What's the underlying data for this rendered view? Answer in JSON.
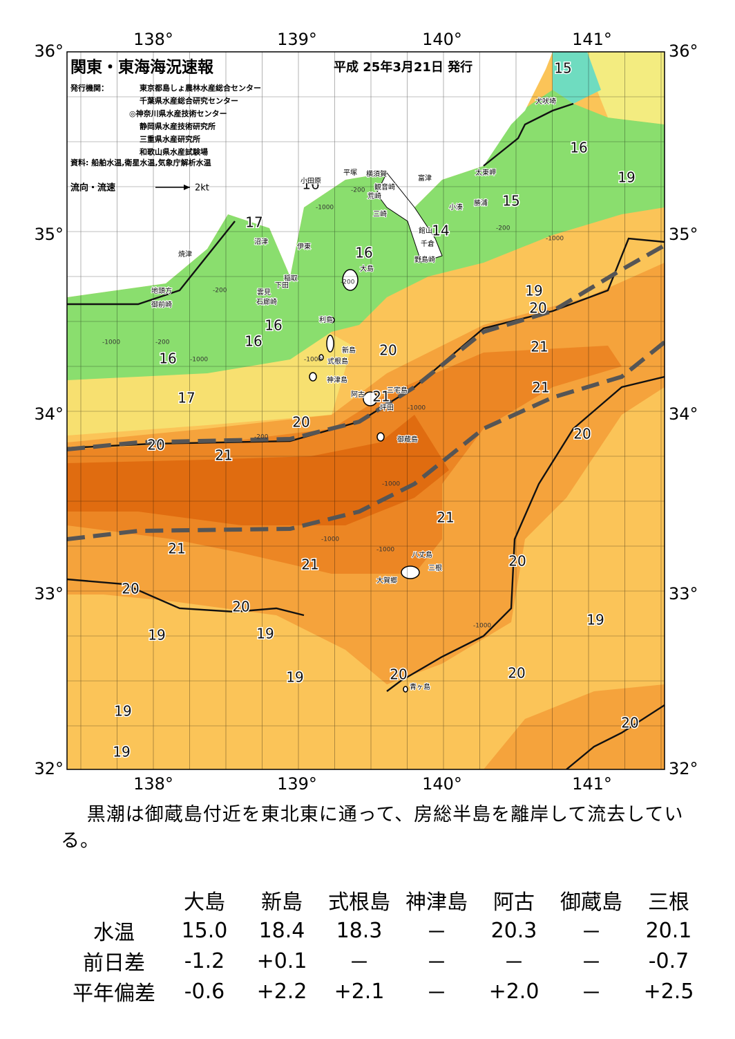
{
  "header": {
    "title": "関東・東海海況速報",
    "date": "平成 25年3月21日 発行",
    "issuer_label": "発行機関：",
    "issuers": [
      "東京都島しょ農林水産総合センター",
      "千葉県水産総合研究センター",
      "◎神奈川県水産技術センター",
      "静岡県水産技術研究所",
      "三重県水産研究所",
      "和歌山県水産試験場"
    ],
    "source": "資料: 船舶水温,衛星水温,気象庁解析水温",
    "flow_legend": "流向・流速",
    "flow_unit": "2kt"
  },
  "axes": {
    "lon_labels": [
      "138°",
      "139°",
      "140°",
      "141°"
    ],
    "lat_labels": [
      "36°",
      "35°",
      "34°",
      "33°",
      "32°"
    ]
  },
  "isotherm_labels": [
    "15",
    "16",
    "19",
    "15",
    "14",
    "16",
    "17",
    "16",
    "19",
    "20",
    "16",
    "16",
    "20",
    "21",
    "16",
    "17",
    "21",
    "21",
    "20",
    "20",
    "21",
    "20",
    "21",
    "21",
    "21",
    "20",
    "20",
    "20",
    "19",
    "19",
    "19",
    "19",
    "20",
    "20",
    "19",
    "20",
    "19"
  ],
  "places": [
    "犬吠埼",
    "太東岬",
    "平塚",
    "横須賀",
    "小田原",
    "富津",
    "観音崎",
    "荒崎",
    "小湊",
    "勝浦",
    "三崎",
    "館山",
    "沼津",
    "伊東",
    "千倉",
    "焼津",
    "野島崎",
    "大島",
    "稲取",
    "下田",
    "雲見",
    "地頭方",
    "石廊崎",
    "御前崎",
    "利島",
    "新島",
    "式根島",
    "神津島",
    "三宅島",
    "阿古",
    "坪田",
    "御蔵島",
    "八丈島",
    "三根",
    "大賀郷",
    "青ヶ島"
  ],
  "depth_labels": [
    "-200",
    "-1000",
    "-200",
    "-1000",
    "-200",
    "-1000",
    "-200",
    "-1000",
    "-200",
    "-1000",
    "-1000",
    "-1000",
    "-1000",
    "-200",
    "-1000",
    "-1000"
  ],
  "note": "黒潮は御蔵島付近を東北東に通って、房総半島を離岸して流去している。",
  "table": {
    "columns": [
      "大島",
      "新島",
      "式根島",
      "神津島",
      "阿古",
      "御蔵島",
      "三根"
    ],
    "rows": [
      {
        "label": "水温",
        "cells": [
          "15.0",
          "18.4",
          "18.3",
          "－",
          "20.3",
          "－",
          "20.1"
        ]
      },
      {
        "label": "前日差",
        "cells": [
          "-1.2",
          "+0.1",
          "－",
          "－",
          "－",
          "－",
          "-0.7"
        ]
      },
      {
        "label": "平年偏差",
        "cells": [
          "-0.6",
          "+2.2",
          "+2.1",
          "－",
          "+2.0",
          "－",
          "+2.5"
        ]
      }
    ]
  }
}
